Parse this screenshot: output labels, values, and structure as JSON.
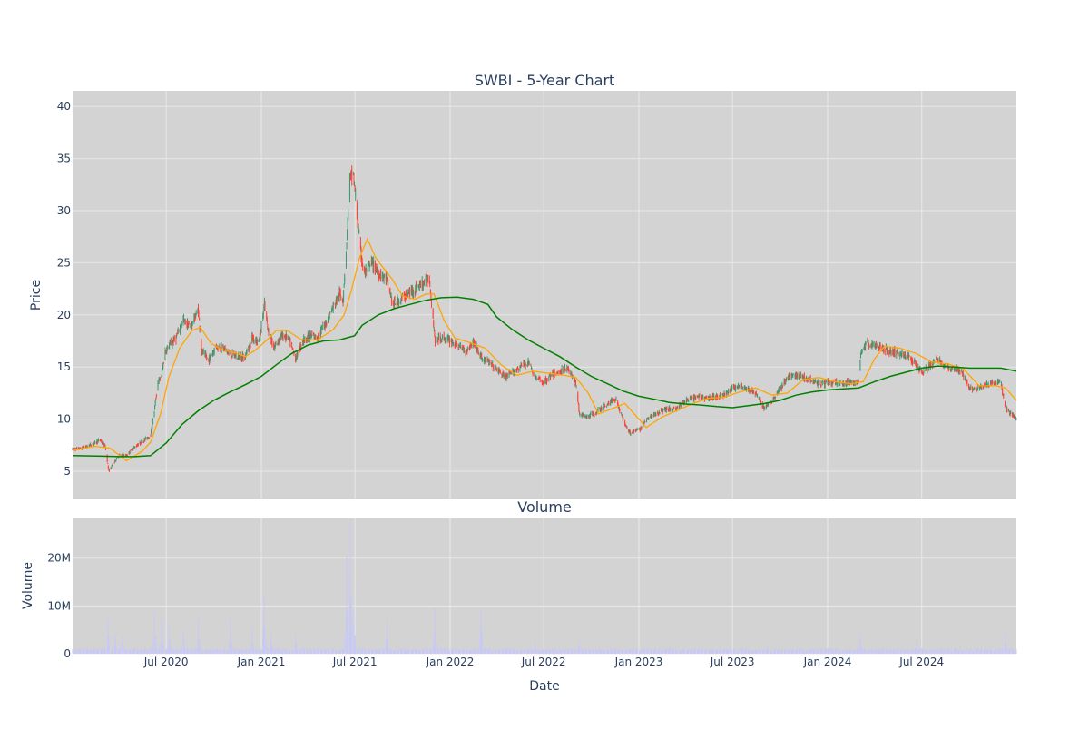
{
  "colors": {
    "plot_bg": "#d3d3d3",
    "grid": "#e8e8e8",
    "increasing": "#3d9970",
    "decreasing": "#ff4136",
    "ma_short": "#ffa500",
    "ma_long": "#008000",
    "volume": "#c9c9f5"
  },
  "chart_data": [
    {
      "type": "candlestick",
      "title": "SWBI - 5-Year Chart",
      "ylabel": "Price",
      "ylim": [
        2.3,
        41.5
      ],
      "yticks": [
        5,
        10,
        15,
        20,
        25,
        30,
        35,
        40
      ],
      "grid": true,
      "legend": "none",
      "x_range": [
        "2020-01-02",
        "2024-12-31"
      ],
      "x_ticks": [
        {
          "date": "2020-07-01",
          "label": "Jul 2020"
        },
        {
          "date": "2021-01-01",
          "label": "Jan 2021"
        },
        {
          "date": "2021-07-01",
          "label": "Jul 2021"
        },
        {
          "date": "2022-01-01",
          "label": "Jan 2022"
        },
        {
          "date": "2022-07-01",
          "label": "Jul 2022"
        },
        {
          "date": "2023-01-01",
          "label": "Jan 2023"
        },
        {
          "date": "2023-07-01",
          "label": "Jul 2023"
        },
        {
          "date": "2024-01-01",
          "label": "Jan 2024"
        },
        {
          "date": "2024-07-01",
          "label": "Jul 2024"
        }
      ],
      "price_path": [
        [
          "2020-01-02",
          7.1
        ],
        [
          "2020-01-20",
          7.2
        ],
        [
          "2020-02-10",
          7.6
        ],
        [
          "2020-02-24",
          8.0
        ],
        [
          "2020-03-05",
          7.4
        ],
        [
          "2020-03-12",
          5.0
        ],
        [
          "2020-03-19",
          5.6
        ],
        [
          "2020-03-31",
          6.5
        ],
        [
          "2020-04-15",
          6.5
        ],
        [
          "2020-04-30",
          7.3
        ],
        [
          "2020-05-15",
          7.8
        ],
        [
          "2020-06-01",
          8.5
        ],
        [
          "2020-06-08",
          10.8
        ],
        [
          "2020-06-15",
          13.5
        ],
        [
          "2020-06-22",
          14.2
        ],
        [
          "2020-06-29",
          16.5
        ],
        [
          "2020-07-06",
          17.0
        ],
        [
          "2020-07-20",
          17.8
        ],
        [
          "2020-08-03",
          19.5
        ],
        [
          "2020-08-17",
          18.8
        ],
        [
          "2020-09-01",
          20.5
        ],
        [
          "2020-09-08",
          16.5
        ],
        [
          "2020-09-21",
          15.6
        ],
        [
          "2020-10-05",
          17.0
        ],
        [
          "2020-10-19",
          16.8
        ],
        [
          "2020-11-02",
          16.2
        ],
        [
          "2020-11-16",
          16.0
        ],
        [
          "2020-11-30",
          15.9
        ],
        [
          "2020-12-14",
          17.8
        ],
        [
          "2020-12-28",
          17.5
        ],
        [
          "2021-01-07",
          21.0
        ],
        [
          "2021-01-14",
          18.5
        ],
        [
          "2021-01-25",
          16.8
        ],
        [
          "2021-02-08",
          18.0
        ],
        [
          "2021-02-22",
          17.8
        ],
        [
          "2021-03-08",
          15.8
        ],
        [
          "2021-03-22",
          17.5
        ],
        [
          "2021-04-05",
          18.0
        ],
        [
          "2021-04-19",
          17.8
        ],
        [
          "2021-05-03",
          19.0
        ],
        [
          "2021-05-17",
          20.5
        ],
        [
          "2021-06-01",
          22.0
        ],
        [
          "2021-06-08",
          21.5
        ],
        [
          "2021-06-15",
          27.0
        ],
        [
          "2021-06-21",
          33.0
        ],
        [
          "2021-06-28",
          33.5
        ],
        [
          "2021-07-06",
          29.0
        ],
        [
          "2021-07-12",
          26.0
        ],
        [
          "2021-07-19",
          24.0
        ],
        [
          "2021-08-02",
          25.0
        ],
        [
          "2021-08-16",
          24.0
        ],
        [
          "2021-08-30",
          23.5
        ],
        [
          "2021-09-13",
          21.0
        ],
        [
          "2021-09-27",
          21.5
        ],
        [
          "2021-10-11",
          22.0
        ],
        [
          "2021-10-25",
          22.5
        ],
        [
          "2021-11-08",
          23.0
        ],
        [
          "2021-11-22",
          23.5
        ],
        [
          "2021-12-03",
          17.5
        ],
        [
          "2021-12-17",
          17.8
        ],
        [
          "2022-01-03",
          17.5
        ],
        [
          "2022-01-18",
          17.0
        ],
        [
          "2022-02-01",
          16.5
        ],
        [
          "2022-02-15",
          17.5
        ],
        [
          "2022-03-01",
          16.0
        ],
        [
          "2022-03-15",
          15.5
        ],
        [
          "2022-04-01",
          14.8
        ],
        [
          "2022-04-18",
          14.0
        ],
        [
          "2022-05-02",
          14.5
        ],
        [
          "2022-05-16",
          15.0
        ],
        [
          "2022-06-01",
          15.5
        ],
        [
          "2022-06-15",
          14.0
        ],
        [
          "2022-07-01",
          13.5
        ],
        [
          "2022-07-15",
          14.2
        ],
        [
          "2022-08-01",
          14.5
        ],
        [
          "2022-08-15",
          15.0
        ],
        [
          "2022-09-01",
          13.5
        ],
        [
          "2022-09-08",
          10.5
        ],
        [
          "2022-09-22",
          10.2
        ],
        [
          "2022-10-06",
          10.5
        ],
        [
          "2022-10-20",
          11.0
        ],
        [
          "2022-11-03",
          11.5
        ],
        [
          "2022-11-17",
          12.0
        ],
        [
          "2022-12-01",
          10.0
        ],
        [
          "2022-12-15",
          8.7
        ],
        [
          "2023-01-03",
          9.0
        ],
        [
          "2023-01-17",
          10.0
        ],
        [
          "2023-02-01",
          10.5
        ],
        [
          "2023-02-15",
          10.8
        ],
        [
          "2023-03-01",
          11.0
        ],
        [
          "2023-03-15",
          11.0
        ],
        [
          "2023-04-03",
          11.8
        ],
        [
          "2023-04-17",
          12.0
        ],
        [
          "2023-05-01",
          12.2
        ],
        [
          "2023-05-15",
          12.0
        ],
        [
          "2023-06-01",
          12.2
        ],
        [
          "2023-06-15",
          12.3
        ],
        [
          "2023-07-03",
          13.0
        ],
        [
          "2023-07-17",
          13.2
        ],
        [
          "2023-08-01",
          12.8
        ],
        [
          "2023-08-15",
          12.5
        ],
        [
          "2023-09-01",
          11.0
        ],
        [
          "2023-09-15",
          11.8
        ],
        [
          "2023-10-02",
          13.0
        ],
        [
          "2023-10-16",
          14.0
        ],
        [
          "2023-11-01",
          14.2
        ],
        [
          "2023-11-15",
          14.0
        ],
        [
          "2023-12-01",
          13.8
        ],
        [
          "2023-12-15",
          13.4
        ],
        [
          "2024-01-02",
          13.5
        ],
        [
          "2024-01-16",
          13.5
        ],
        [
          "2024-02-01",
          13.3
        ],
        [
          "2024-02-15",
          13.6
        ],
        [
          "2024-03-01",
          13.5
        ],
        [
          "2024-03-05",
          16.5
        ],
        [
          "2024-03-18",
          17.3
        ],
        [
          "2024-04-01",
          17.0
        ],
        [
          "2024-04-15",
          16.8
        ],
        [
          "2024-05-01",
          16.5
        ],
        [
          "2024-05-15",
          16.4
        ],
        [
          "2024-06-03",
          16.0
        ],
        [
          "2024-06-17",
          15.5
        ],
        [
          "2024-07-01",
          14.5
        ],
        [
          "2024-07-15",
          15.0
        ],
        [
          "2024-08-01",
          15.8
        ],
        [
          "2024-08-15",
          15.0
        ],
        [
          "2024-09-02",
          14.8
        ],
        [
          "2024-09-16",
          14.5
        ],
        [
          "2024-10-01",
          13.0
        ],
        [
          "2024-10-15",
          13.0
        ],
        [
          "2024-11-01",
          13.2
        ],
        [
          "2024-11-15",
          13.5
        ],
        [
          "2024-12-01",
          13.5
        ],
        [
          "2024-12-10",
          11.0
        ],
        [
          "2024-12-20",
          10.5
        ],
        [
          "2024-12-31",
          10.0
        ]
      ],
      "ma_short": [
        [
          "2020-01-02",
          7.0
        ],
        [
          "2020-02-15",
          7.4
        ],
        [
          "2020-03-15",
          7.2
        ],
        [
          "2020-04-15",
          6.0
        ],
        [
          "2020-05-15",
          6.9
        ],
        [
          "2020-06-01",
          7.8
        ],
        [
          "2020-06-20",
          10.5
        ],
        [
          "2020-07-06",
          14.0
        ],
        [
          "2020-07-27",
          16.8
        ],
        [
          "2020-08-20",
          18.5
        ],
        [
          "2020-09-05",
          18.8
        ],
        [
          "2020-09-25",
          17.3
        ],
        [
          "2020-10-15",
          16.7
        ],
        [
          "2020-11-15",
          16.3
        ],
        [
          "2020-12-01",
          16.0
        ],
        [
          "2020-12-20",
          16.6
        ],
        [
          "2021-01-10",
          17.5
        ],
        [
          "2021-01-30",
          18.5
        ],
        [
          "2021-02-20",
          18.5
        ],
        [
          "2021-03-20",
          17.6
        ],
        [
          "2021-04-20",
          17.6
        ],
        [
          "2021-05-20",
          18.6
        ],
        [
          "2021-06-10",
          20.0
        ],
        [
          "2021-06-25",
          22.5
        ],
        [
          "2021-07-10",
          25.5
        ],
        [
          "2021-07-25",
          27.3
        ],
        [
          "2021-08-10",
          25.5
        ],
        [
          "2021-08-25",
          24.5
        ],
        [
          "2021-09-10",
          23.5
        ],
        [
          "2021-10-01",
          21.8
        ],
        [
          "2021-10-25",
          21.5
        ],
        [
          "2021-11-15",
          22.0
        ],
        [
          "2021-12-01",
          22.0
        ],
        [
          "2021-12-20",
          19.5
        ],
        [
          "2022-01-10",
          17.8
        ],
        [
          "2022-02-10",
          17.3
        ],
        [
          "2022-03-10",
          16.8
        ],
        [
          "2022-04-10",
          15.2
        ],
        [
          "2022-05-10",
          14.2
        ],
        [
          "2022-06-10",
          14.6
        ],
        [
          "2022-07-10",
          14.4
        ],
        [
          "2022-08-10",
          14.2
        ],
        [
          "2022-09-01",
          14.0
        ],
        [
          "2022-09-25",
          12.5
        ],
        [
          "2022-10-15",
          10.5
        ],
        [
          "2022-11-10",
          11.0
        ],
        [
          "2022-12-05",
          11.5
        ],
        [
          "2023-01-01",
          10.0
        ],
        [
          "2023-01-15",
          9.2
        ],
        [
          "2023-02-15",
          10.2
        ],
        [
          "2023-03-15",
          10.8
        ],
        [
          "2023-04-15",
          11.5
        ],
        [
          "2023-05-15",
          12.0
        ],
        [
          "2023-06-15",
          12.1
        ],
        [
          "2023-07-15",
          12.6
        ],
        [
          "2023-08-15",
          13.0
        ],
        [
          "2023-09-15",
          12.3
        ],
        [
          "2023-10-15",
          12.5
        ],
        [
          "2023-11-15",
          13.8
        ],
        [
          "2023-12-15",
          14.0
        ],
        [
          "2024-01-15",
          13.6
        ],
        [
          "2024-02-15",
          13.4
        ],
        [
          "2024-03-10",
          13.6
        ],
        [
          "2024-04-01",
          15.8
        ],
        [
          "2024-04-20",
          17.0
        ],
        [
          "2024-05-20",
          16.8
        ],
        [
          "2024-06-20",
          16.3
        ],
        [
          "2024-07-20",
          15.5
        ],
        [
          "2024-08-20",
          15.3
        ],
        [
          "2024-09-20",
          14.8
        ],
        [
          "2024-10-20",
          13.2
        ],
        [
          "2024-11-20",
          13.2
        ],
        [
          "2024-12-10",
          13.0
        ],
        [
          "2024-12-31",
          11.8
        ]
      ],
      "ma_long": [
        [
          "2020-01-02",
          6.5
        ],
        [
          "2020-03-01",
          6.45
        ],
        [
          "2020-04-01",
          6.4
        ],
        [
          "2020-05-01",
          6.4
        ],
        [
          "2020-06-01",
          6.5
        ],
        [
          "2020-07-01",
          7.7
        ],
        [
          "2020-08-01",
          9.5
        ],
        [
          "2020-09-01",
          10.8
        ],
        [
          "2020-10-01",
          11.8
        ],
        [
          "2020-11-01",
          12.6
        ],
        [
          "2020-12-01",
          13.3
        ],
        [
          "2021-01-01",
          14.1
        ],
        [
          "2021-02-01",
          15.3
        ],
        [
          "2021-03-01",
          16.3
        ],
        [
          "2021-04-01",
          17.1
        ],
        [
          "2021-05-01",
          17.5
        ],
        [
          "2021-06-01",
          17.6
        ],
        [
          "2021-06-30",
          18.0
        ],
        [
          "2021-07-15",
          19.0
        ],
        [
          "2021-08-15",
          20.0
        ],
        [
          "2021-09-15",
          20.6
        ],
        [
          "2021-10-15",
          21.0
        ],
        [
          "2021-11-15",
          21.4
        ],
        [
          "2021-12-15",
          21.65
        ],
        [
          "2022-01-15",
          21.7
        ],
        [
          "2022-02-15",
          21.5
        ],
        [
          "2022-03-15",
          21.0
        ],
        [
          "2022-04-01",
          19.8
        ],
        [
          "2022-05-01",
          18.6
        ],
        [
          "2022-06-01",
          17.6
        ],
        [
          "2022-07-01",
          16.8
        ],
        [
          "2022-08-01",
          16.0
        ],
        [
          "2022-09-01",
          15.0
        ],
        [
          "2022-10-01",
          14.1
        ],
        [
          "2022-11-01",
          13.4
        ],
        [
          "2022-12-01",
          12.7
        ],
        [
          "2023-01-01",
          12.2
        ],
        [
          "2023-02-01",
          11.9
        ],
        [
          "2023-03-01",
          11.6
        ],
        [
          "2023-04-01",
          11.45
        ],
        [
          "2023-05-01",
          11.35
        ],
        [
          "2023-06-01",
          11.2
        ],
        [
          "2023-07-01",
          11.1
        ],
        [
          "2023-08-01",
          11.3
        ],
        [
          "2023-09-01",
          11.5
        ],
        [
          "2023-10-01",
          11.8
        ],
        [
          "2023-11-01",
          12.3
        ],
        [
          "2023-12-01",
          12.6
        ],
        [
          "2024-01-01",
          12.8
        ],
        [
          "2024-02-01",
          12.9
        ],
        [
          "2024-03-01",
          13.0
        ],
        [
          "2024-04-01",
          13.6
        ],
        [
          "2024-05-01",
          14.1
        ],
        [
          "2024-06-01",
          14.5
        ],
        [
          "2024-07-01",
          14.9
        ],
        [
          "2024-08-01",
          15.1
        ],
        [
          "2024-09-01",
          15.0
        ],
        [
          "2024-10-01",
          14.9
        ],
        [
          "2024-11-01",
          14.9
        ],
        [
          "2024-12-01",
          14.9
        ],
        [
          "2024-12-31",
          14.6
        ]
      ]
    },
    {
      "type": "bar",
      "title": "Volume",
      "ylabel": "Volume",
      "xlabel": "Date",
      "ylim": [
        0,
        28500000
      ],
      "yticks": [
        {
          "value": 0,
          "label": "0"
        },
        {
          "value": 10000000,
          "label": "10M"
        },
        {
          "value": 20000000,
          "label": "20M"
        }
      ],
      "grid": true,
      "baseline": 800000,
      "spikes": [
        [
          "2020-03-10",
          7500000
        ],
        [
          "2020-03-24",
          4200000
        ],
        [
          "2020-04-08",
          3800000
        ],
        [
          "2020-06-08",
          8500000
        ],
        [
          "2020-06-22",
          7500000
        ],
        [
          "2020-07-06",
          6500000
        ],
        [
          "2020-08-03",
          5000000
        ],
        [
          "2020-09-01",
          7500000
        ],
        [
          "2020-11-02",
          7500000
        ],
        [
          "2020-12-14",
          5200000
        ],
        [
          "2021-01-07",
          12200000
        ],
        [
          "2021-01-20",
          4200000
        ],
        [
          "2021-03-08",
          4000000
        ],
        [
          "2021-06-15",
          20500000
        ],
        [
          "2021-06-22",
          28000000
        ],
        [
          "2021-06-29",
          9000000
        ],
        [
          "2021-09-01",
          6800000
        ],
        [
          "2021-12-03",
          9500000
        ],
        [
          "2022-03-02",
          9200000
        ],
        [
          "2022-06-15",
          2500000
        ],
        [
          "2022-09-08",
          2800000
        ],
        [
          "2023-03-01",
          1500000
        ],
        [
          "2023-09-07",
          1500000
        ],
        [
          "2024-03-04",
          4000000
        ],
        [
          "2024-06-20",
          2000000
        ],
        [
          "2024-12-10",
          4200000
        ]
      ]
    }
  ]
}
